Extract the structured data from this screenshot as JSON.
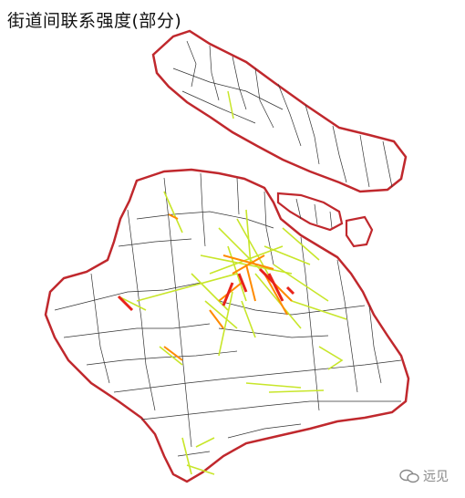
{
  "title": "街道间联系强度(部分)",
  "watermark": {
    "text": "远见",
    "icon": "wechat-icon"
  },
  "colors": {
    "boundary": "#c0282d",
    "district_lines": "#222222",
    "strength_high": "#e8231a",
    "strength_mid": "#ff8a00",
    "strength_low": "#c8e62a"
  }
}
